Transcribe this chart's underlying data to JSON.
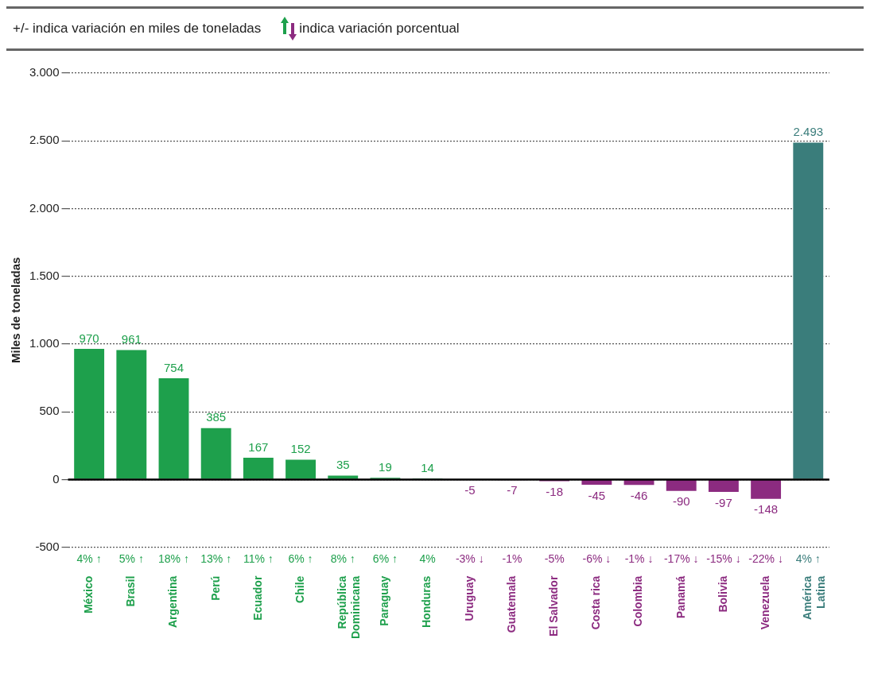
{
  "chart_data": {
    "type": "bar",
    "ylabel": "Miles de toneladas",
    "categories": [
      "México",
      "Brasil",
      "Argentina",
      "Perú",
      "Ecuador",
      "Chile",
      "República\nDominicana",
      "Paraguay",
      "Honduras",
      "Uruguay",
      "Guatemala",
      "El Salvador",
      "Costa rica",
      "Colombia",
      "Panamá",
      "Bolivia",
      "Venezuela",
      "América\nLatina"
    ],
    "values": [
      970,
      961,
      754,
      385,
      167,
      152,
      35,
      19,
      14,
      -5,
      -7,
      -18,
      -45,
      -46,
      -90,
      -97,
      -148,
      2493
    ],
    "colors": [
      "#1ea04c",
      "#1ea04c",
      "#1ea04c",
      "#1ea04c",
      "#1ea04c",
      "#1ea04c",
      "#1ea04c",
      "#1ea04c",
      "#1ea04c",
      "#8c2b80",
      "#8c2b80",
      "#8c2b80",
      "#8c2b80",
      "#8c2b80",
      "#8c2b80",
      "#8c2b80",
      "#8c2b80",
      "#3a7d7b"
    ],
    "value_labels": [
      "970",
      "961",
      "754",
      "385",
      "167",
      "152",
      "35",
      "19",
      "14",
      "-5",
      "-7",
      "-18",
      "-45",
      "-46",
      "-90",
      "-97",
      "-148",
      "2.493"
    ],
    "ylim": [
      -500,
      3000
    ],
    "yticks": [
      -500,
      0,
      500,
      {
        "value": 1000,
        "label": "1.000"
      },
      {
        "value": 1500,
        "label": "1.500"
      },
      {
        "value": 2000,
        "label": "2.000"
      },
      {
        "value": 2500,
        "label": "2.500"
      },
      {
        "value": 3000,
        "label": "3.000"
      }
    ],
    "grid": "y",
    "legend": false,
    "annotations": [
      "+/- indica variación en miles de toneladas",
      "indica variación porcentual",
      "4% ↑",
      "5% ↑",
      "18% ↑",
      "13% ↑",
      "11% ↑",
      "6% ↑",
      "8% ↑",
      "6% ↑",
      "4%",
      "-3% ↓",
      "-1%",
      "-5%",
      "-6% ↓",
      "-1% ↓",
      "-17% ↓",
      "-15% ↓",
      "-22% ↓",
      "4% ↑"
    ]
  }
}
